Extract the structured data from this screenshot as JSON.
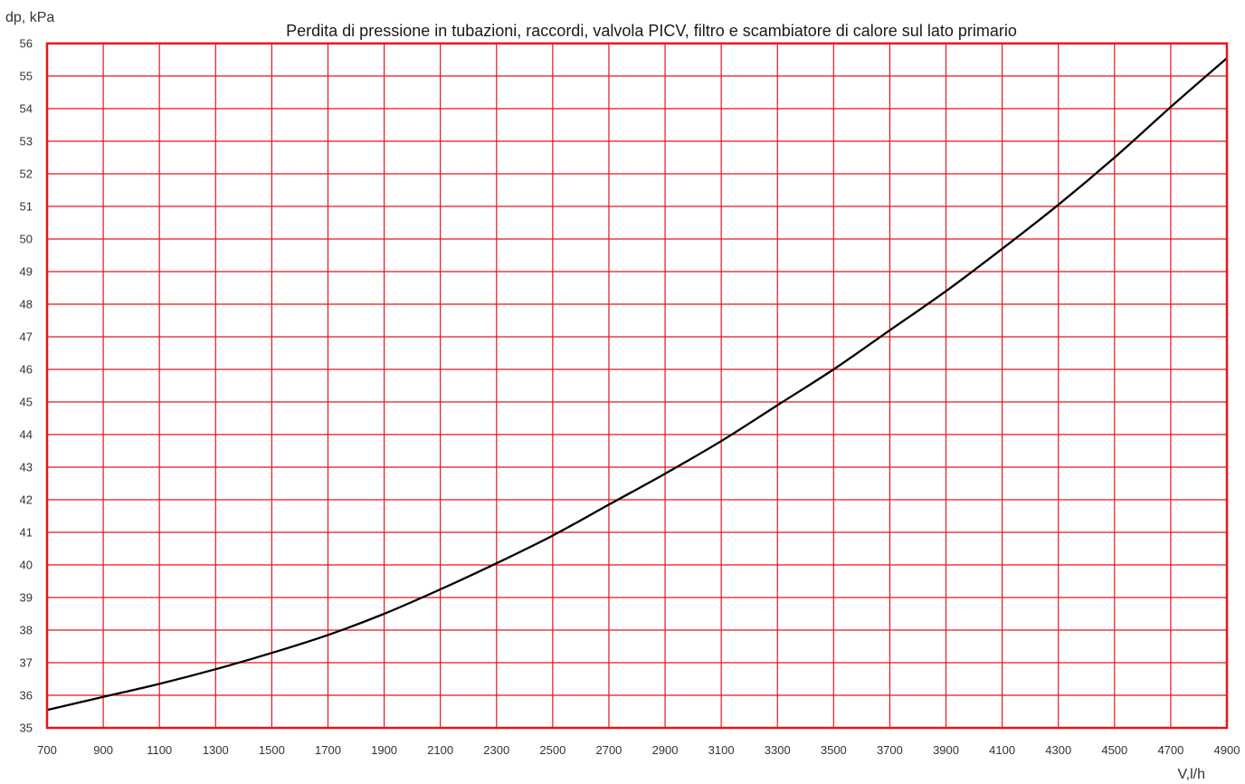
{
  "chart_data": {
    "type": "line",
    "title": "Perdita di pressione in tubazioni, raccordi, valvola PICV, filtro e scambiatore di calore sul lato primario",
    "xlabel": "V,l/h",
    "ylabel": "dp, kPa",
    "xlim": [
      700,
      4900
    ],
    "ylim": [
      35,
      56
    ],
    "x_ticks": [
      "700",
      "900",
      "1100",
      "1300",
      "1500",
      "1700",
      "1900",
      "2100",
      "2300",
      "2500",
      "2700",
      "2900",
      "3100",
      "3300",
      "3500",
      "3700",
      "3900",
      "4100",
      "4300",
      "4500",
      "4700",
      "4900"
    ],
    "y_ticks": [
      "35",
      "36",
      "37",
      "38",
      "39",
      "40",
      "41",
      "42",
      "43",
      "44",
      "45",
      "46",
      "47",
      "48",
      "49",
      "50",
      "51",
      "52",
      "53",
      "54",
      "55",
      "56"
    ],
    "x_tick_values": [
      700,
      900,
      1100,
      1300,
      1500,
      1700,
      1900,
      2100,
      2300,
      2500,
      2700,
      2900,
      3100,
      3300,
      3500,
      3700,
      3900,
      4100,
      4300,
      4500,
      4700,
      4900
    ],
    "y_tick_values": [
      35,
      36,
      37,
      38,
      39,
      40,
      41,
      42,
      43,
      44,
      45,
      46,
      47,
      48,
      49,
      50,
      51,
      52,
      53,
      54,
      55,
      56
    ],
    "grid": true,
    "colors": {
      "grid": "#e8141c",
      "line": "#000000"
    },
    "series": [
      {
        "x": [
          700,
          900,
          1100,
          1300,
          1500,
          1700,
          1900,
          2100,
          2300,
          2500,
          2700,
          2900,
          3100,
          3300,
          3500,
          3700,
          3900,
          4100,
          4300,
          4500,
          4700,
          4900
        ],
        "values": [
          35.55,
          35.95,
          36.35,
          36.8,
          37.3,
          37.85,
          38.5,
          39.25,
          40.05,
          40.9,
          41.85,
          42.8,
          43.8,
          44.9,
          46.0,
          47.2,
          48.4,
          49.7,
          51.05,
          52.5,
          54.05,
          55.55
        ]
      }
    ]
  }
}
